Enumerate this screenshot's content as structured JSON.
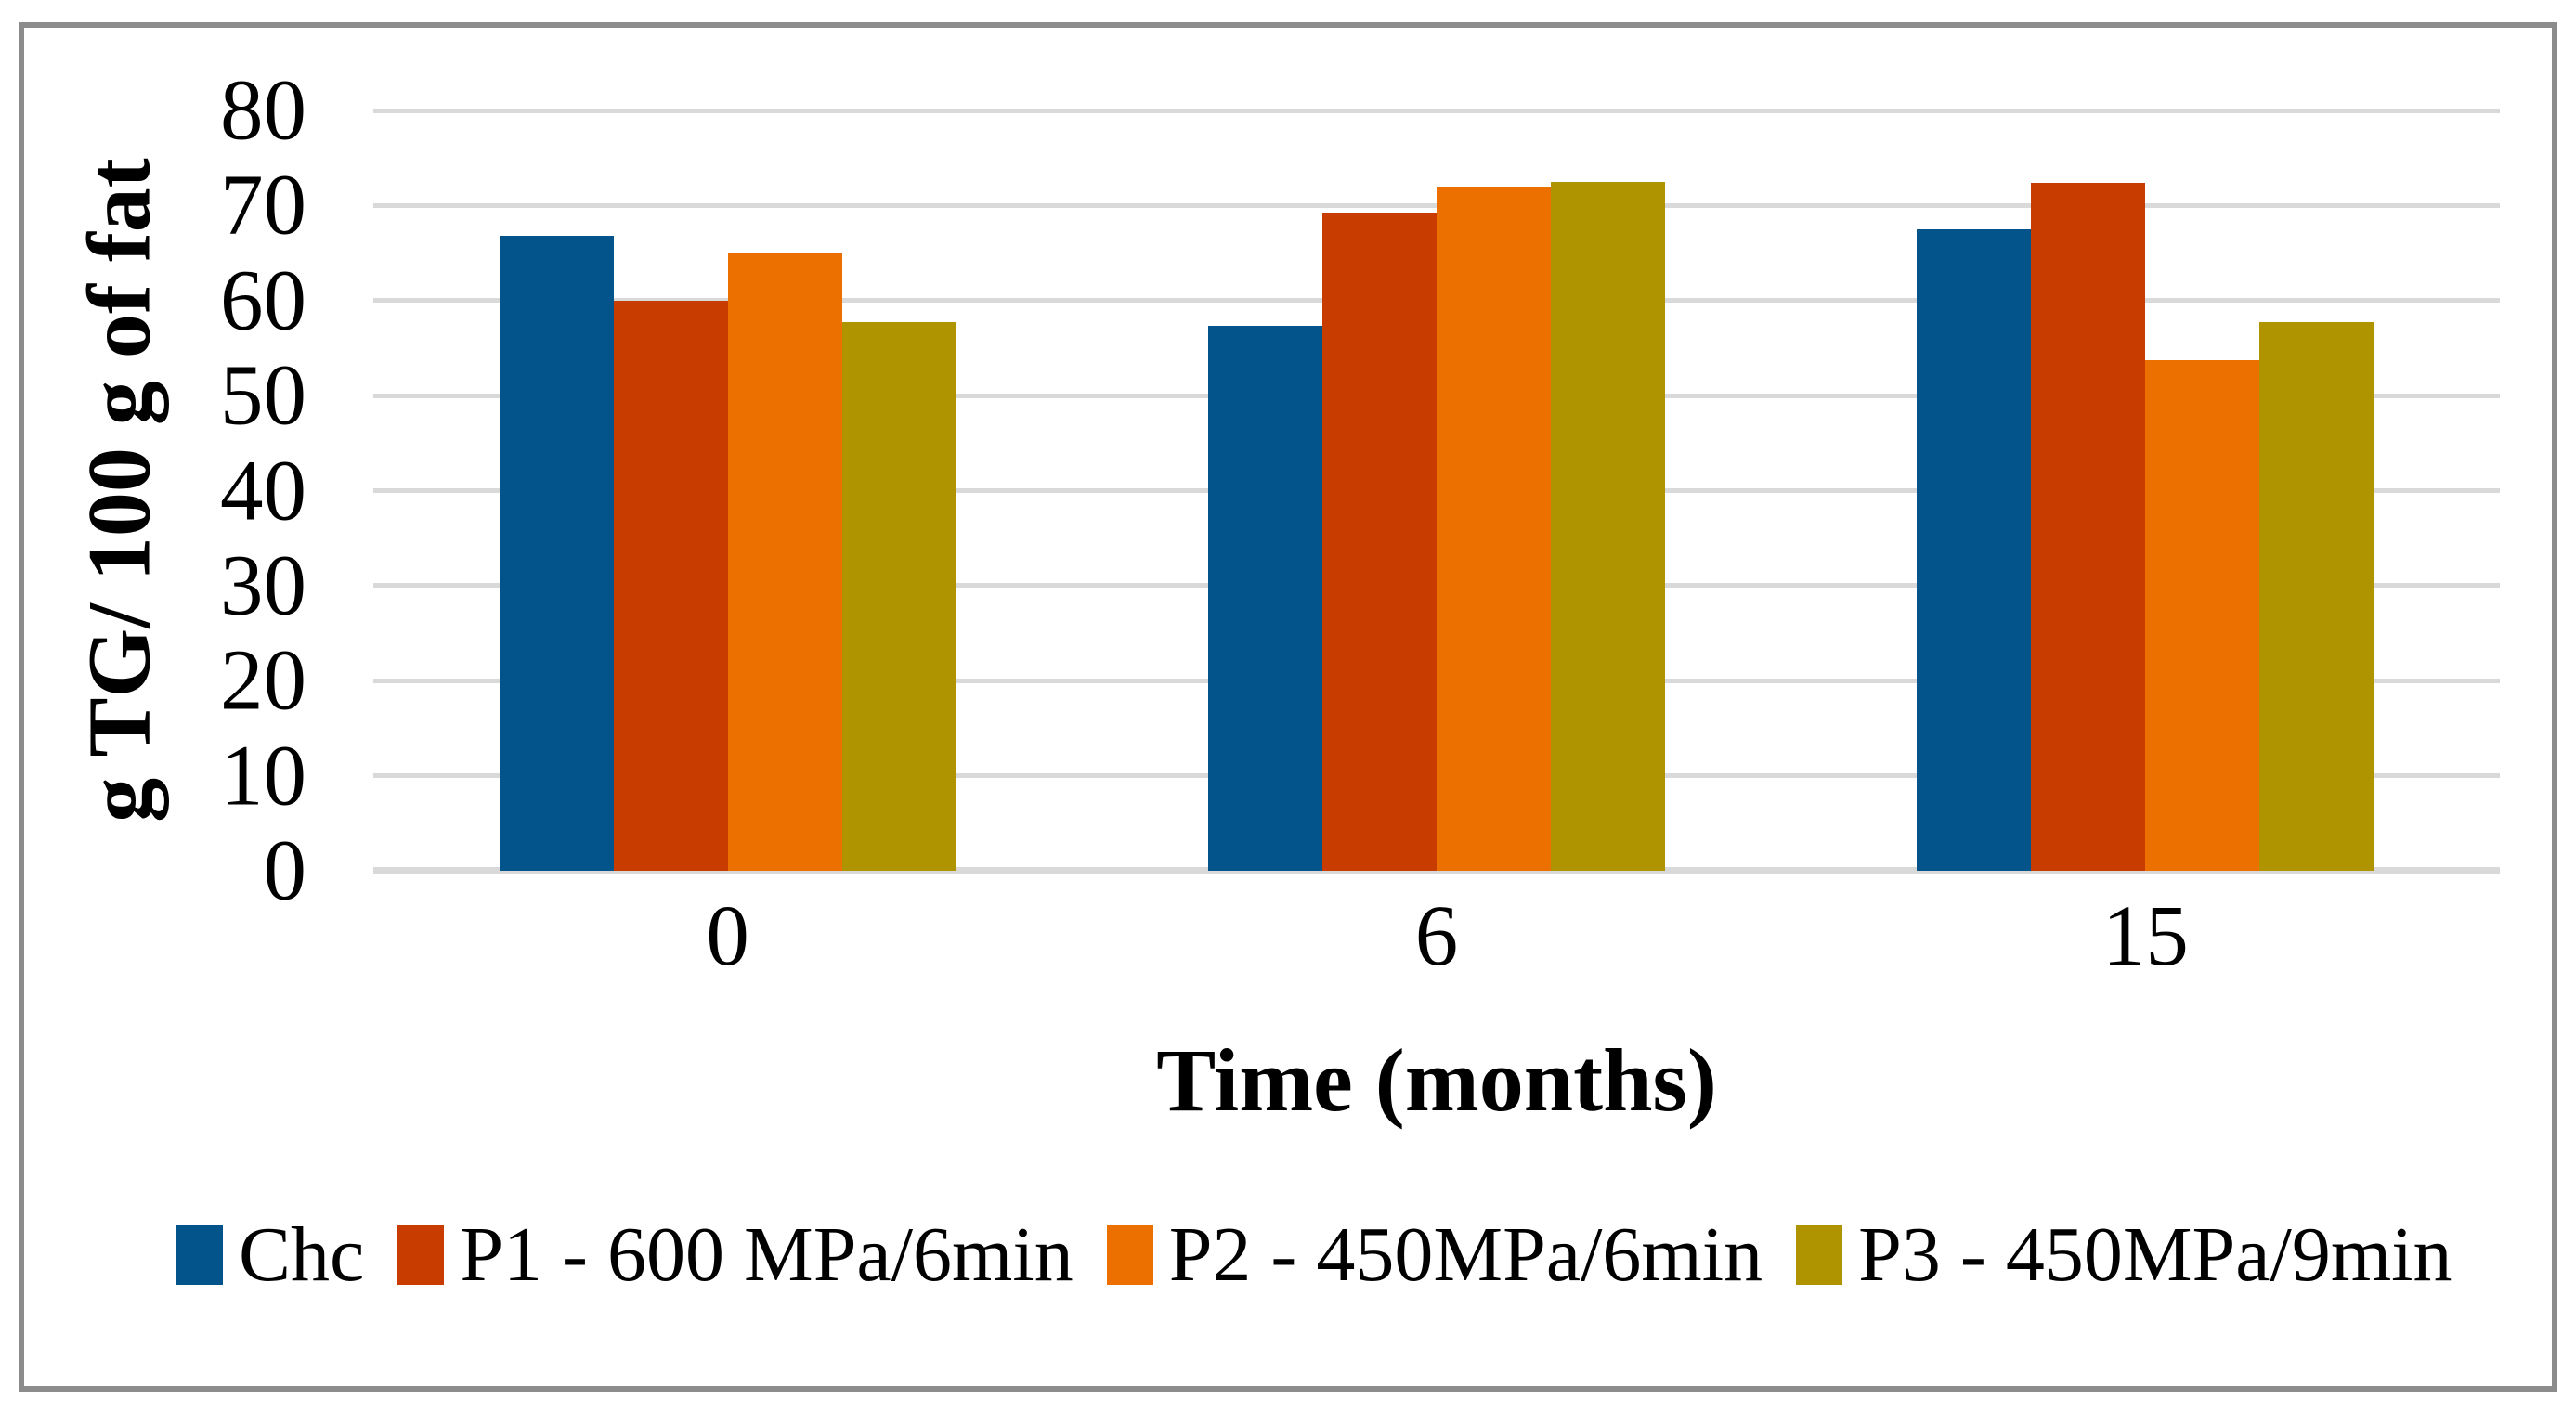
{
  "chart_data": {
    "type": "bar",
    "title": "",
    "xlabel": "Time (months)",
    "ylabel": "g TG/ 100 g of fat",
    "categories": [
      "0",
      "6",
      "15"
    ],
    "series": [
      {
        "name": "Chc",
        "color": "#02548B",
        "values": [
          66.8,
          57.3,
          67.5
        ]
      },
      {
        "name": "P1 - 600 MPa/6min",
        "color": "#C83C00",
        "values": [
          60.0,
          69.3,
          72.4
        ]
      },
      {
        "name": "P2 - 450MPa/6min",
        "color": "#EC7000",
        "values": [
          65.0,
          72.0,
          53.7
        ]
      },
      {
        "name": "P3 - 450MPa/9min",
        "color": "#AF9400",
        "values": [
          57.7,
          72.5,
          57.7
        ]
      }
    ],
    "ylim": [
      0,
      80
    ],
    "ytick_step": 10,
    "yticks": [
      "0",
      "10",
      "20",
      "30",
      "40",
      "50",
      "60",
      "70",
      "80"
    ],
    "grid": true,
    "gridline_color": "#D9D9D9",
    "axis_line_color": "#D9D9D9",
    "frame_color": "#8C8C8C",
    "legend_position": "bottom"
  }
}
